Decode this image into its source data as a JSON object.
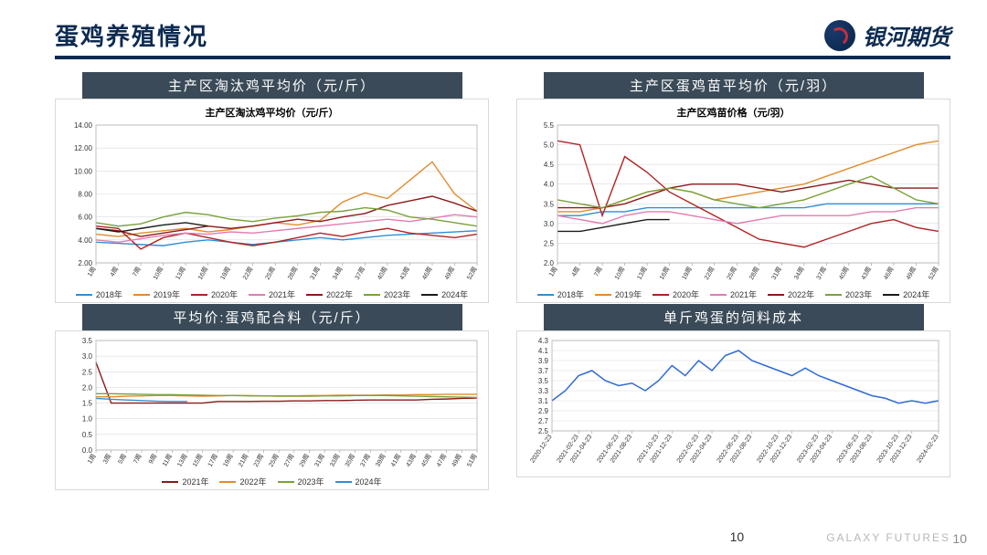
{
  "header": {
    "title": "蛋鸡养殖情况",
    "brand_text": "银河期货"
  },
  "footer": {
    "page_no_center": "10",
    "company_en": "GALAXY FUTURES",
    "page_no_right": "10"
  },
  "palette": {
    "y2018": "#2f8fd6",
    "y2019": "#e28b2b",
    "y2020": "#b22222",
    "y2021": "#e27bb1",
    "y2022": "#8b1a1a",
    "y2023": "#7aa13a",
    "y2024": "#1a1a1a"
  },
  "panels": {
    "cull_chicken": {
      "title_bar": "主产区淘汰鸡平均价（元/斤）",
      "inner_title": "主产区淘汰鸡平均价（元/斤）",
      "xticks": [
        "1周",
        "4周",
        "7周",
        "10周",
        "13周",
        "16周",
        "19周",
        "22周",
        "25周",
        "28周",
        "31周",
        "34周",
        "37周",
        "40周",
        "43周",
        "46周",
        "49周",
        "52周"
      ],
      "ylim": [
        2.0,
        14.0
      ],
      "ytick_step": 2.0,
      "grid_color": "#d9d9d9",
      "line_width": 1.4,
      "legend": [
        "2018年",
        "2019年",
        "2020年",
        "2021年",
        "2022年",
        "2023年",
        "2024年"
      ],
      "legend_colors": [
        "#2f8fd6",
        "#e28b2b",
        "#b22222",
        "#e27bb1",
        "#8b1a1a",
        "#7aa13a",
        "#1a1a1a"
      ],
      "series": {
        "2018": [
          3.8,
          3.7,
          3.6,
          3.5,
          3.8,
          4.0,
          3.8,
          3.6,
          3.8,
          4.0,
          4.2,
          4.0,
          4.2,
          4.4,
          4.5,
          4.6,
          4.7,
          4.8
        ],
        "2019": [
          4.5,
          4.3,
          4.6,
          4.8,
          5.0,
          4.7,
          4.9,
          5.2,
          5.5,
          5.3,
          5.7,
          7.3,
          8.1,
          7.6,
          9.2,
          10.8,
          8.0,
          6.5
        ],
        "2020": [
          5.2,
          5.0,
          3.2,
          4.2,
          4.6,
          4.2,
          3.8,
          3.5,
          3.8,
          4.2,
          4.6,
          4.3,
          4.7,
          5.0,
          4.6,
          4.4,
          4.2,
          4.5
        ],
        "2021": [
          4.0,
          3.8,
          4.1,
          4.4,
          4.6,
          4.5,
          4.7,
          4.6,
          4.8,
          5.0,
          5.2,
          5.4,
          5.6,
          5.8,
          5.6,
          5.9,
          6.2,
          6.0
        ],
        "2022": [
          5.0,
          4.8,
          4.3,
          4.6,
          4.9,
          5.2,
          5.0,
          5.2,
          5.5,
          5.8,
          5.6,
          6.0,
          6.3,
          7.0,
          7.4,
          7.8,
          7.2,
          6.5
        ],
        "2023": [
          5.5,
          5.2,
          5.4,
          6.0,
          6.4,
          6.2,
          5.8,
          5.6,
          5.9,
          6.1,
          6.4,
          6.5,
          6.8,
          6.6,
          6.0,
          5.8,
          5.5,
          5.2
        ],
        "2024": [
          5.0,
          4.7,
          5.0,
          5.3,
          5.5,
          5.2
        ]
      }
    },
    "chick_price": {
      "title_bar": "主产区蛋鸡苗平均价（元/羽）",
      "inner_title": "主产区鸡苗价格（元/羽）",
      "xticks": [
        "1周",
        "4周",
        "7周",
        "10周",
        "13周",
        "16周",
        "19周",
        "22周",
        "25周",
        "28周",
        "31周",
        "34周",
        "37周",
        "40周",
        "43周",
        "46周",
        "49周",
        "52周"
      ],
      "ylim": [
        2.0,
        5.5
      ],
      "ytick_step": 0.5,
      "grid_color": "#d9d9d9",
      "line_width": 1.4,
      "legend": [
        "2018年",
        "2019年",
        "2020年",
        "2021年",
        "2022年",
        "2023年",
        "2024年"
      ],
      "legend_colors": [
        "#2f8fd6",
        "#e28b2b",
        "#b22222",
        "#e27bb1",
        "#8b1a1a",
        "#7aa13a",
        "#1a1a1a"
      ],
      "series": {
        "2018": [
          3.2,
          3.2,
          3.3,
          3.3,
          3.4,
          3.4,
          3.4,
          3.4,
          3.4,
          3.4,
          3.4,
          3.4,
          3.5,
          3.5,
          3.5,
          3.5,
          3.5,
          3.5
        ],
        "2019": [
          3.3,
          3.3,
          3.4,
          3.6,
          3.8,
          3.9,
          3.8,
          3.6,
          3.7,
          3.8,
          3.9,
          4.0,
          4.2,
          4.4,
          4.6,
          4.8,
          5.0,
          5.1
        ],
        "2020": [
          5.1,
          5.0,
          3.2,
          4.7,
          4.3,
          3.8,
          3.5,
          3.2,
          2.9,
          2.6,
          2.5,
          2.4,
          2.6,
          2.8,
          3.0,
          3.1,
          2.9,
          2.8
        ],
        "2021": [
          3.2,
          3.1,
          3.0,
          3.2,
          3.3,
          3.3,
          3.2,
          3.1,
          3.0,
          3.1,
          3.2,
          3.2,
          3.2,
          3.2,
          3.3,
          3.3,
          3.4,
          3.4
        ],
        "2022": [
          3.4,
          3.4,
          3.4,
          3.5,
          3.7,
          3.9,
          4.0,
          4.0,
          4.0,
          3.9,
          3.8,
          3.9,
          4.0,
          4.1,
          4.0,
          3.9,
          3.9,
          3.9
        ],
        "2023": [
          3.6,
          3.5,
          3.4,
          3.6,
          3.8,
          3.9,
          3.8,
          3.6,
          3.5,
          3.4,
          3.5,
          3.6,
          3.8,
          4.0,
          4.2,
          3.9,
          3.6,
          3.5
        ],
        "2024": [
          2.8,
          2.8,
          2.9,
          3.0,
          3.1,
          3.1
        ]
      }
    },
    "feed_price": {
      "title_bar": "平均价:蛋鸡配合料（元/斤）",
      "inner_title": "",
      "xticks": [
        "1周",
        "3周",
        "5周",
        "7周",
        "9周",
        "11周",
        "13周",
        "15周",
        "17周",
        "19周",
        "21周",
        "23周",
        "25周",
        "27周",
        "29周",
        "31周",
        "33周",
        "35周",
        "37周",
        "39周",
        "41周",
        "43周",
        "45周",
        "47周",
        "49周",
        "51周"
      ],
      "ylim": [
        0.0,
        3.5
      ],
      "ytick_step": 0.5,
      "grid_color": "#d9d9d9",
      "line_width": 1.4,
      "legend": [
        "2021年",
        "2022年",
        "2023年",
        "2024年"
      ],
      "legend_colors": [
        "#8b1a1a",
        "#e28b2b",
        "#7aa13a",
        "#2f8fd6"
      ],
      "series": {
        "2021": [
          2.8,
          1.5,
          1.5,
          1.5,
          1.5,
          1.5,
          1.5,
          1.5,
          1.55,
          1.55,
          1.55,
          1.56,
          1.56,
          1.57,
          1.57,
          1.58,
          1.58,
          1.59,
          1.6,
          1.6,
          1.6,
          1.6,
          1.62,
          1.63,
          1.65,
          1.66
        ],
        "2022": [
          1.7,
          1.7,
          1.72,
          1.73,
          1.74,
          1.74,
          1.73,
          1.72,
          1.73,
          1.74,
          1.74,
          1.73,
          1.73,
          1.73,
          1.74,
          1.74,
          1.75,
          1.75,
          1.75,
          1.76,
          1.76,
          1.77,
          1.77,
          1.78,
          1.78,
          1.78
        ],
        "2023": [
          1.8,
          1.8,
          1.79,
          1.78,
          1.77,
          1.77,
          1.76,
          1.75,
          1.74,
          1.74,
          1.73,
          1.73,
          1.72,
          1.72,
          1.72,
          1.73,
          1.73,
          1.74,
          1.74,
          1.74,
          1.73,
          1.72,
          1.71,
          1.7,
          1.69,
          1.68
        ],
        "2024": [
          1.65,
          1.62,
          1.6,
          1.58,
          1.56,
          1.55,
          1.55
        ]
      }
    },
    "feed_cost": {
      "title_bar": "单斤鸡蛋的饲料成本",
      "inner_title": "",
      "xticks": [
        "2020-12-23",
        "2021-02-23",
        "2021-04-23",
        "2021-06-23",
        "2021-08-23",
        "2021-10-23",
        "2021-12-23",
        "2022-02-23",
        "2022-04-23",
        "2022-06-23",
        "2022-08-23",
        "2022-10-23",
        "2022-12-23",
        "2023-02-23",
        "2023-04-23",
        "2023-06-23",
        "2023-08-23",
        "2023-10-23",
        "2023-12-23",
        "2024-02-23"
      ],
      "ylim": [
        2.5,
        4.3
      ],
      "ytick_step": 0.2,
      "grid_color": "#d9d9d9",
      "line_width": 1.5,
      "color": "#2f6bd6",
      "series": [
        3.1,
        3.3,
        3.6,
        3.7,
        3.5,
        3.4,
        3.45,
        3.3,
        3.5,
        3.8,
        3.6,
        3.9,
        3.7,
        4.0,
        4.1,
        3.9,
        3.8,
        3.7,
        3.6,
        3.75,
        3.6,
        3.5,
        3.4,
        3.3,
        3.2,
        3.15,
        3.05,
        3.1,
        3.05,
        3.1
      ]
    }
  }
}
